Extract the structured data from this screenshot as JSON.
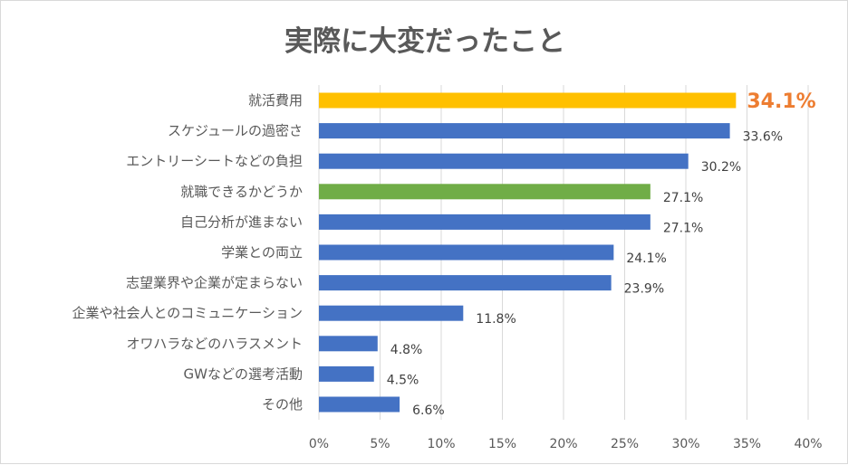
{
  "chart_data": {
    "type": "bar",
    "orientation": "horizontal",
    "title": "実際に大変だったこと",
    "xlabel": "",
    "ylabel": "",
    "xlim": [
      0,
      40
    ],
    "ticks": [
      0,
      5,
      10,
      15,
      20,
      25,
      30,
      35,
      40
    ],
    "tick_labels": [
      "0%",
      "5%",
      "10%",
      "15%",
      "20%",
      "25%",
      "30%",
      "35%",
      "40%"
    ],
    "grid": true,
    "legend": "none",
    "categories": [
      "就活費用",
      "スケジュールの過密さ",
      "エントリーシートなどの負担",
      "就職できるかどうか",
      "自己分析が進まない",
      "学業との両立",
      "志望業界や企業が定まらない",
      "企業や社会人とのコミュニケーション",
      "オワハラなどのハラスメント",
      "GWなどの選考活動",
      "その他"
    ],
    "values": [
      34.1,
      33.6,
      30.2,
      27.1,
      27.1,
      24.1,
      23.9,
      11.8,
      4.8,
      4.5,
      6.6
    ],
    "value_labels": [
      "34.1%",
      "33.6%",
      "30.2%",
      "27.1%",
      "27.1%",
      "24.1%",
      "23.9%",
      "11.8%",
      "4.8%",
      "4.5%",
      "6.6%"
    ],
    "bar_colors": [
      "#ffc000",
      "#4472c4",
      "#4472c4",
      "#70ad47",
      "#4472c4",
      "#4472c4",
      "#4472c4",
      "#4472c4",
      "#4472c4",
      "#4472c4",
      "#4472c4"
    ],
    "highlight_index": 0,
    "highlight_label_color": "#ed7d31"
  }
}
